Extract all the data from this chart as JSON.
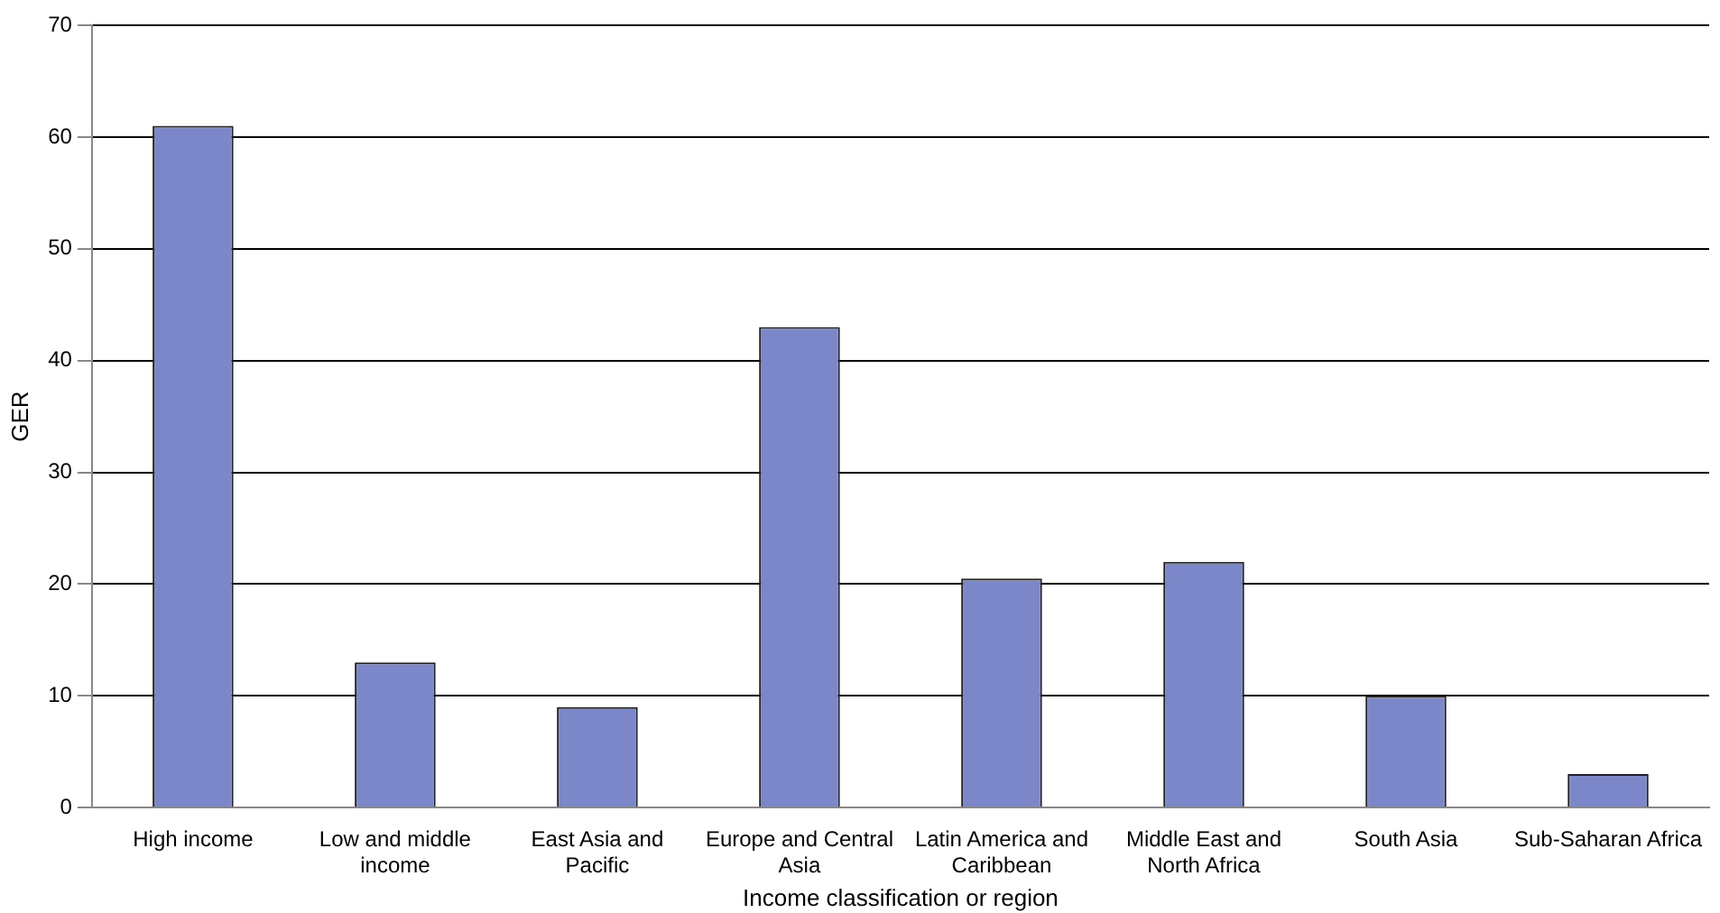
{
  "chart_data": {
    "type": "bar",
    "xlabel": "Income classification or region",
    "ylabel": "GER",
    "categories": [
      "High income",
      "Low and middle income",
      "East Asia and Pacific",
      "Europe and Central Asia",
      "Latin America and Caribbean",
      "Middle East and North Africa",
      "South Asia",
      "Sub-Saharan Africa"
    ],
    "values": [
      61,
      13,
      9,
      43,
      20.5,
      22,
      10,
      3
    ],
    "color": "#7b87c8",
    "ylim": [
      0,
      70
    ],
    "yticks": [
      0,
      10,
      20,
      30,
      40,
      50,
      60,
      70
    ],
    "grid": "y",
    "legend": false
  }
}
